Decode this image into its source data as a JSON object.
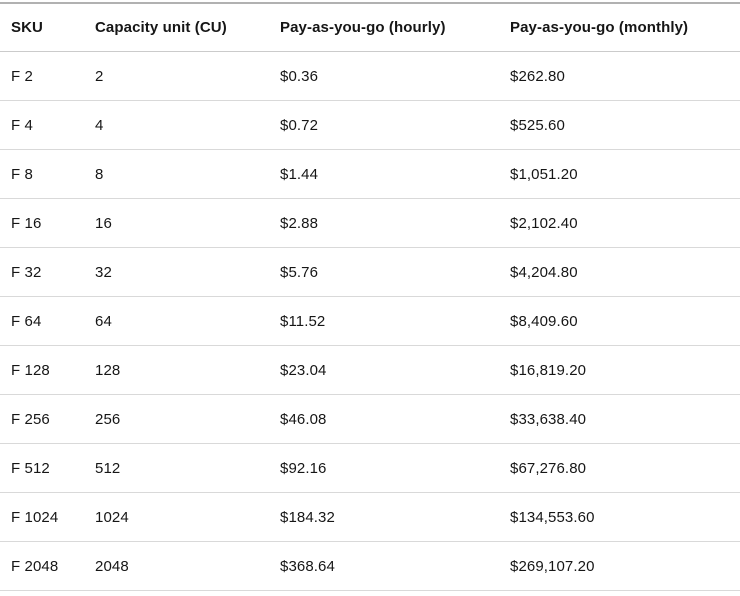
{
  "table": {
    "columns": [
      "SKU",
      "Capacity unit (CU)",
      "Pay-as-you-go (hourly)",
      "Pay-as-you-go (monthly)"
    ],
    "rows": [
      {
        "sku": "F 2",
        "cu": "2",
        "hourly": "$0.36",
        "monthly": "$262.80"
      },
      {
        "sku": "F 4",
        "cu": "4",
        "hourly": "$0.72",
        "monthly": "$525.60"
      },
      {
        "sku": "F 8",
        "cu": "8",
        "hourly": "$1.44",
        "monthly": "$1,051.20"
      },
      {
        "sku": "F 16",
        "cu": "16",
        "hourly": "$2.88",
        "monthly": "$2,102.40"
      },
      {
        "sku": "F 32",
        "cu": "32",
        "hourly": "$5.76",
        "monthly": "$4,204.80"
      },
      {
        "sku": "F 64",
        "cu": "64",
        "hourly": "$11.52",
        "monthly": "$8,409.60"
      },
      {
        "sku": "F 128",
        "cu": "128",
        "hourly": "$23.04",
        "monthly": "$16,819.20"
      },
      {
        "sku": "F 256",
        "cu": "256",
        "hourly": "$46.08",
        "monthly": "$33,638.40"
      },
      {
        "sku": "F 512",
        "cu": "512",
        "hourly": "$92.16",
        "monthly": "$67,276.80"
      },
      {
        "sku": "F 1024",
        "cu": "1024",
        "hourly": "$184.32",
        "monthly": "$134,553.60"
      },
      {
        "sku": "F 2048",
        "cu": "2048",
        "hourly": "$368.64",
        "monthly": "$269,107.20"
      }
    ]
  },
  "colors": {
    "text": "#161616",
    "table_top_border": "#b1b1b1",
    "header_bottom_border": "#cbcbcb",
    "row_border": "#d9d9d9",
    "background": "#ffffff"
  }
}
